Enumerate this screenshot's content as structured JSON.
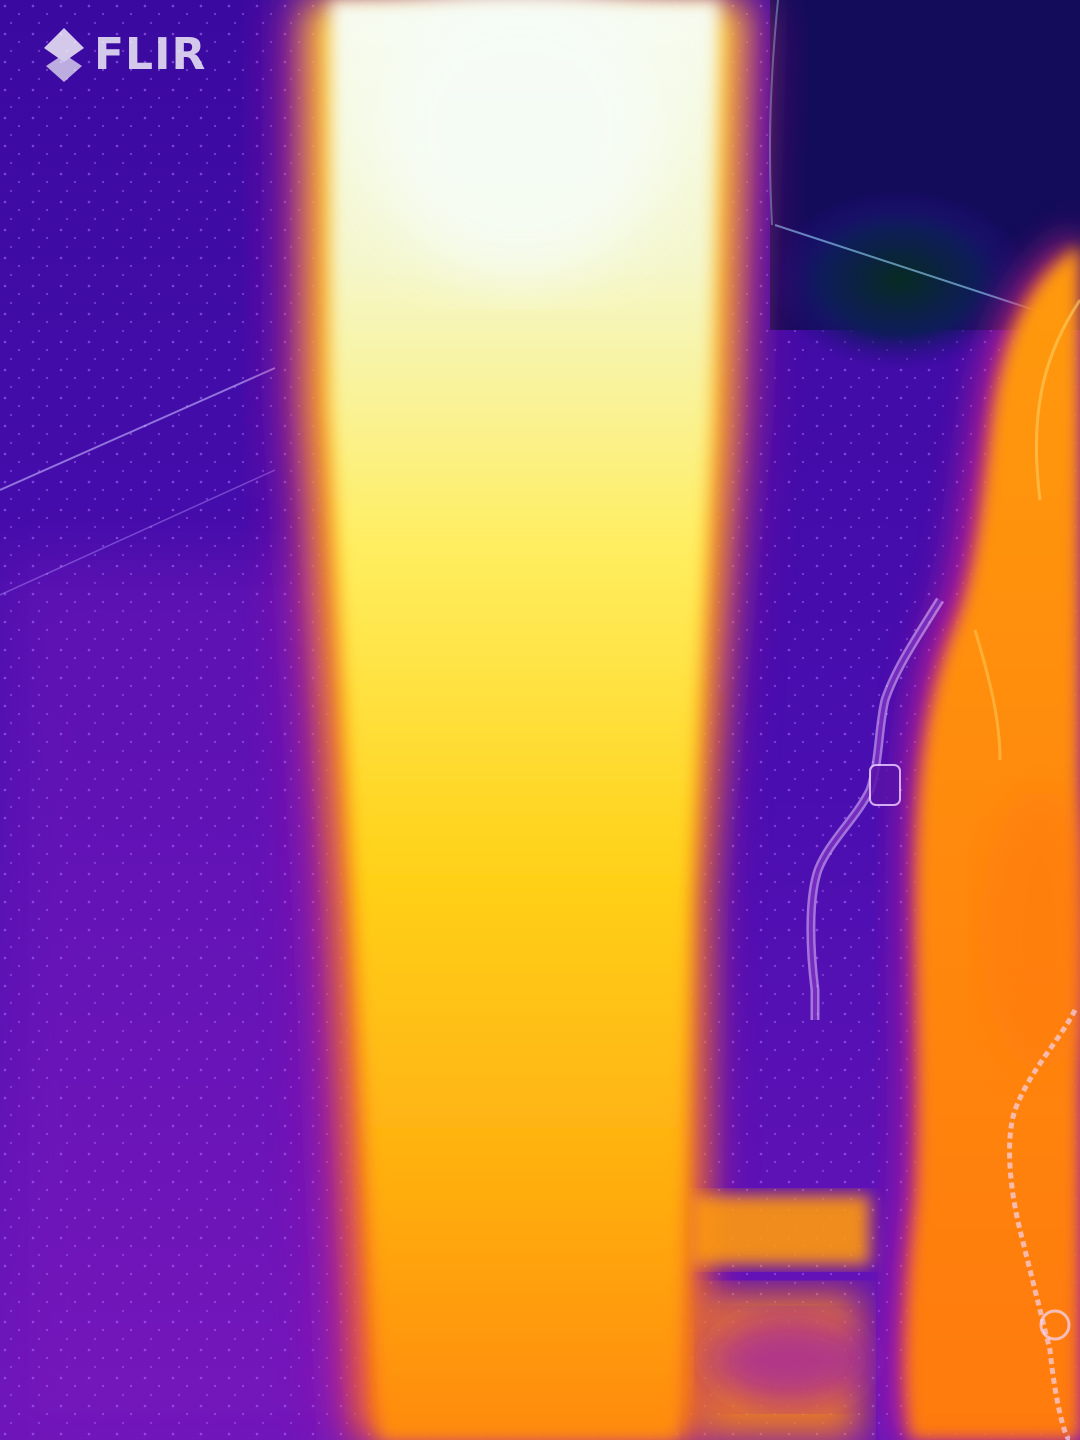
{
  "brand": {
    "logo_text": "FLIR",
    "logo_icon": "flir-diamond-logo-icon",
    "logo_color": "#ffffff"
  },
  "thermal_image": {
    "palette": "iron",
    "palette_colors": {
      "coldest": "#0a2a2a",
      "cold": "#2c0a8a",
      "cool": "#6a1ab8",
      "mid": "#c81aa0",
      "warm": "#ff6a00",
      "hot": "#ffb400",
      "hotter": "#ffe650",
      "hottest": "#f4fbf4"
    }
  }
}
